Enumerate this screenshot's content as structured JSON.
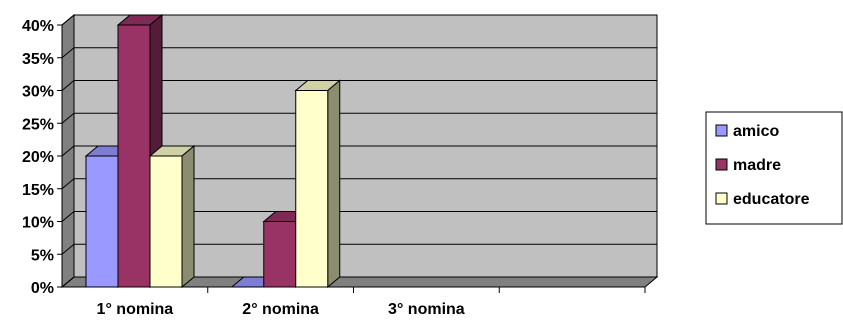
{
  "chart_data": {
    "type": "bar",
    "categories": [
      "1° nomina",
      "2° nomina",
      "3° nomina",
      ""
    ],
    "series": [
      {
        "name": "amico",
        "values": [
          20,
          0,
          null,
          null
        ]
      },
      {
        "name": "madre",
        "values": [
          40,
          10,
          null,
          null
        ]
      },
      {
        "name": "educatore",
        "values": [
          20,
          30,
          null,
          null
        ]
      }
    ],
    "ylim": [
      0,
      40
    ],
    "yticks": [
      "0%",
      "5%",
      "10%",
      "15%",
      "20%",
      "25%",
      "30%",
      "35%",
      "40%"
    ],
    "grid": true,
    "legend": "right",
    "colors": {
      "amico": "#9999ff",
      "madre": "#993366",
      "educatore": "#ffffcc",
      "plot_background": "#c0c0c0"
    }
  }
}
